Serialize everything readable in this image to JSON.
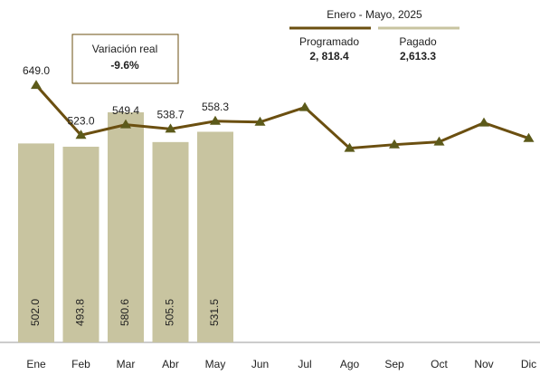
{
  "chart_data": {
    "type": "bar-line",
    "categories": [
      "Ene",
      "Feb",
      "Mar",
      "Abr",
      "May",
      "Jun",
      "Jul",
      "Ago",
      "Sep",
      "Oct",
      "Nov",
      "Dic"
    ],
    "series": [
      {
        "name": "Pagado",
        "type": "bar",
        "color": "#c8c4a0",
        "values": [
          502.0,
          493.8,
          580.6,
          505.5,
          531.5,
          null,
          null,
          null,
          null,
          null,
          null,
          null
        ],
        "value_labels": [
          "502.0",
          "493.8",
          "580.6",
          "505.5",
          "531.5",
          null,
          null,
          null,
          null,
          null,
          null,
          null
        ]
      },
      {
        "name": "Programado",
        "type": "line",
        "color": "#6b4f10",
        "marker_color": "#5c5a1a",
        "values": [
          649.0,
          523.0,
          549.4,
          538.7,
          558.3,
          556,
          593,
          490,
          499,
          506,
          554,
          515
        ],
        "value_labels": [
          "649.0",
          "523.0",
          "549.4",
          "538.7",
          "558.3",
          null,
          null,
          null,
          null,
          null,
          null,
          null
        ]
      }
    ],
    "ylim": [
      0,
      800
    ],
    "legend_title": "Enero - Mayo, 2025",
    "legend_totals": [
      {
        "name": "Programado",
        "total": {
          "value": 2818.4,
          "label": "2, 818.4"
        }
      },
      {
        "name": "Pagado",
        "total": {
          "value": 2613.3,
          "label": "2,613.3"
        }
      }
    ],
    "annotation": {
      "title": "Variación real",
      "value": {
        "value": -9.6,
        "label": "-9.6%"
      }
    }
  }
}
